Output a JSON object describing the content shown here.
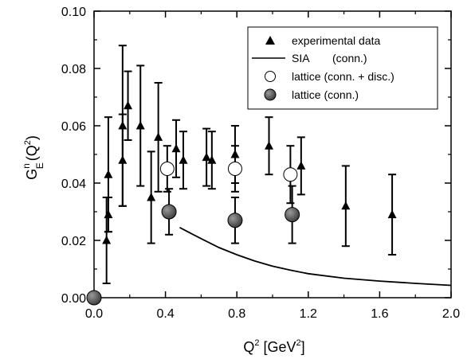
{
  "chart_data": {
    "type": "scatter",
    "xlim": [
      0.0,
      2.0
    ],
    "ylim": [
      0.0,
      0.1
    ],
    "x_ticks": [
      "0.0",
      "0.4",
      "0.8",
      "1.2",
      "1.6",
      "2.0"
    ],
    "y_ticks": [
      "0.00",
      "0.02",
      "0.04",
      "0.06",
      "0.08",
      "0.10"
    ],
    "xlabel": {
      "main": "Q",
      "sup": "2",
      "rest": " [GeV",
      "sup2": "2",
      "end": "]"
    },
    "ylabel": {
      "main": "G",
      "sup": "n",
      "sub": "E",
      "rest": "(Q",
      "sup2": "2",
      "end": ")"
    },
    "legend_position": "top-right",
    "series": [
      {
        "name": "experimental data",
        "marker": "triangle",
        "points": [
          {
            "x": 0.07,
            "y": 0.02,
            "err": 0.015
          },
          {
            "x": 0.08,
            "y": 0.043,
            "err": 0.02
          },
          {
            "x": 0.08,
            "y": 0.029,
            "err": 0.006
          },
          {
            "x": 0.16,
            "y": 0.048,
            "err": 0.016
          },
          {
            "x": 0.16,
            "y": 0.06,
            "err": 0.028
          },
          {
            "x": 0.19,
            "y": 0.067,
            "err": 0.012
          },
          {
            "x": 0.26,
            "y": 0.06,
            "err": 0.021
          },
          {
            "x": 0.32,
            "y": 0.035,
            "err": 0.016
          },
          {
            "x": 0.36,
            "y": 0.056,
            "err": 0.019
          },
          {
            "x": 0.46,
            "y": 0.052,
            "err": 0.01
          },
          {
            "x": 0.5,
            "y": 0.048,
            "err": 0.01
          },
          {
            "x": 0.63,
            "y": 0.049,
            "err": 0.01
          },
          {
            "x": 0.66,
            "y": 0.048,
            "err": 0.01
          },
          {
            "x": 0.79,
            "y": 0.05,
            "err": 0.01
          },
          {
            "x": 0.98,
            "y": 0.053,
            "err": 0.01
          },
          {
            "x": 1.16,
            "y": 0.046,
            "err": 0.01
          },
          {
            "x": 1.41,
            "y": 0.032,
            "err": 0.014
          },
          {
            "x": 1.67,
            "y": 0.029,
            "err": 0.014
          }
        ]
      },
      {
        "name": "SIA",
        "annotation": "(conn.)",
        "marker": "line",
        "points": [
          {
            "x": 0.48,
            "y": 0.0245
          },
          {
            "x": 0.55,
            "y": 0.0222
          },
          {
            "x": 0.6,
            "y": 0.0206
          },
          {
            "x": 0.7,
            "y": 0.0175
          },
          {
            "x": 0.8,
            "y": 0.015
          },
          {
            "x": 0.9,
            "y": 0.0128
          },
          {
            "x": 1.0,
            "y": 0.011
          },
          {
            "x": 1.1,
            "y": 0.0096
          },
          {
            "x": 1.2,
            "y": 0.0084
          },
          {
            "x": 1.4,
            "y": 0.0068
          },
          {
            "x": 1.6,
            "y": 0.0058
          },
          {
            "x": 1.8,
            "y": 0.005
          },
          {
            "x": 2.0,
            "y": 0.0043
          }
        ]
      },
      {
        "name": "lattice (conn. + disc.)",
        "marker": "open-circle",
        "points": [
          {
            "x": 0.41,
            "y": 0.045,
            "err": 0.008
          },
          {
            "x": 0.79,
            "y": 0.045,
            "err": 0.008
          },
          {
            "x": 1.1,
            "y": 0.043,
            "err": 0.01
          }
        ]
      },
      {
        "name": "lattice (conn.)",
        "marker": "filled-circle",
        "points": [
          {
            "x": 0.0,
            "y": 0.0,
            "err": 0.0
          },
          {
            "x": 0.42,
            "y": 0.03,
            "err": 0.008
          },
          {
            "x": 0.79,
            "y": 0.027,
            "err": 0.008
          },
          {
            "x": 1.11,
            "y": 0.029,
            "err": 0.01
          }
        ]
      }
    ]
  }
}
